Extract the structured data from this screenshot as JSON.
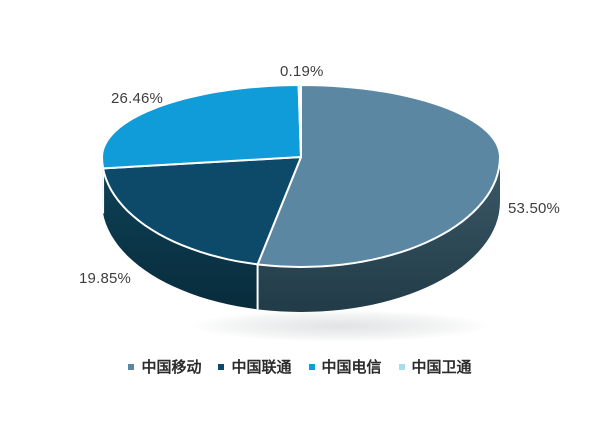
{
  "chart_data": {
    "type": "pie",
    "style_3d": true,
    "title": "",
    "unit": "%",
    "labels": [
      "中国移动",
      "中国联通",
      "中国电信",
      "中国卫通"
    ],
    "values": [
      53.5,
      19.85,
      26.46,
      0.19
    ],
    "data_labels": [
      "53.50%",
      "19.85%",
      "26.46%",
      "0.19%"
    ],
    "colors": [
      "#5b87a2",
      "#0d4a69",
      "#0f9cd8",
      "#a9dcef"
    ],
    "side_colors": [
      [
        "#3d5a68",
        "#213b48"
      ],
      [
        "#0e4156",
        "#082c3c"
      ],
      [
        "#0b6f9b",
        "#085a7e"
      ],
      [
        "#7fb8d2",
        "#6aa3bd"
      ]
    ],
    "separator_color": "#ffffff",
    "label_color": "#3e3e3e",
    "start_angle_deg": 0,
    "direction": "clockwise",
    "legend_position": "bottom"
  }
}
